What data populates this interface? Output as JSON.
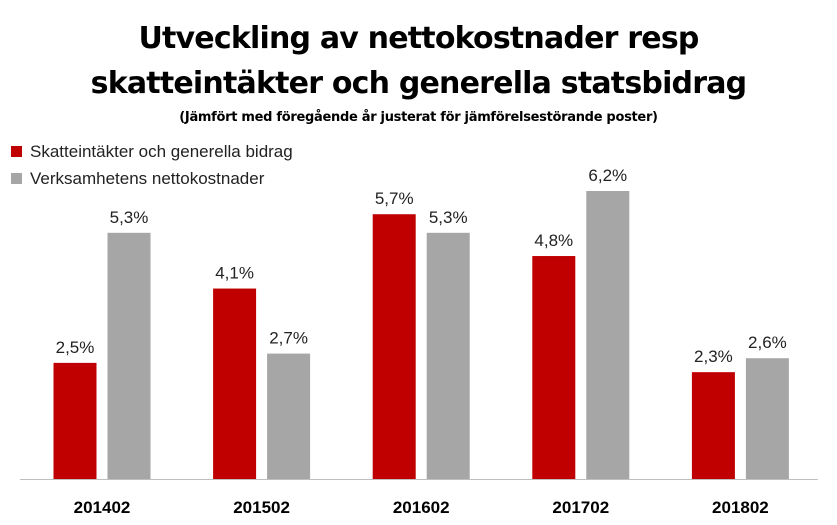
{
  "chart_data": {
    "type": "bar",
    "title_lines": [
      "Utveckling av nettokostnader resp",
      "skatteintäkter och generella statsbidrag"
    ],
    "subtitle": "(Jämfört med föregående år justerat för jämförelsestörande poster)",
    "categories": [
      "201402",
      "201502",
      "201602",
      "201702",
      "201802"
    ],
    "series": [
      {
        "name": "Skatteintäkter och generella bidrag",
        "color": "#C00000",
        "values": [
          2.5,
          4.1,
          5.7,
          4.8,
          2.3
        ],
        "labels": [
          "2,5%",
          "4,1%",
          "5,7%",
          "4,8%",
          "2,3%"
        ]
      },
      {
        "name": "Verksamhetens nettokostnader",
        "color": "#A6A6A6",
        "values": [
          5.3,
          2.7,
          5.3,
          6.2,
          2.6
        ],
        "labels": [
          "5,3%",
          "2,7%",
          "5,3%",
          "6,2%",
          "2,6%"
        ]
      }
    ],
    "ylim": [
      0,
      6.2
    ],
    "xlabel": "",
    "ylabel": "",
    "grid": false,
    "legend_position": "top-left"
  }
}
